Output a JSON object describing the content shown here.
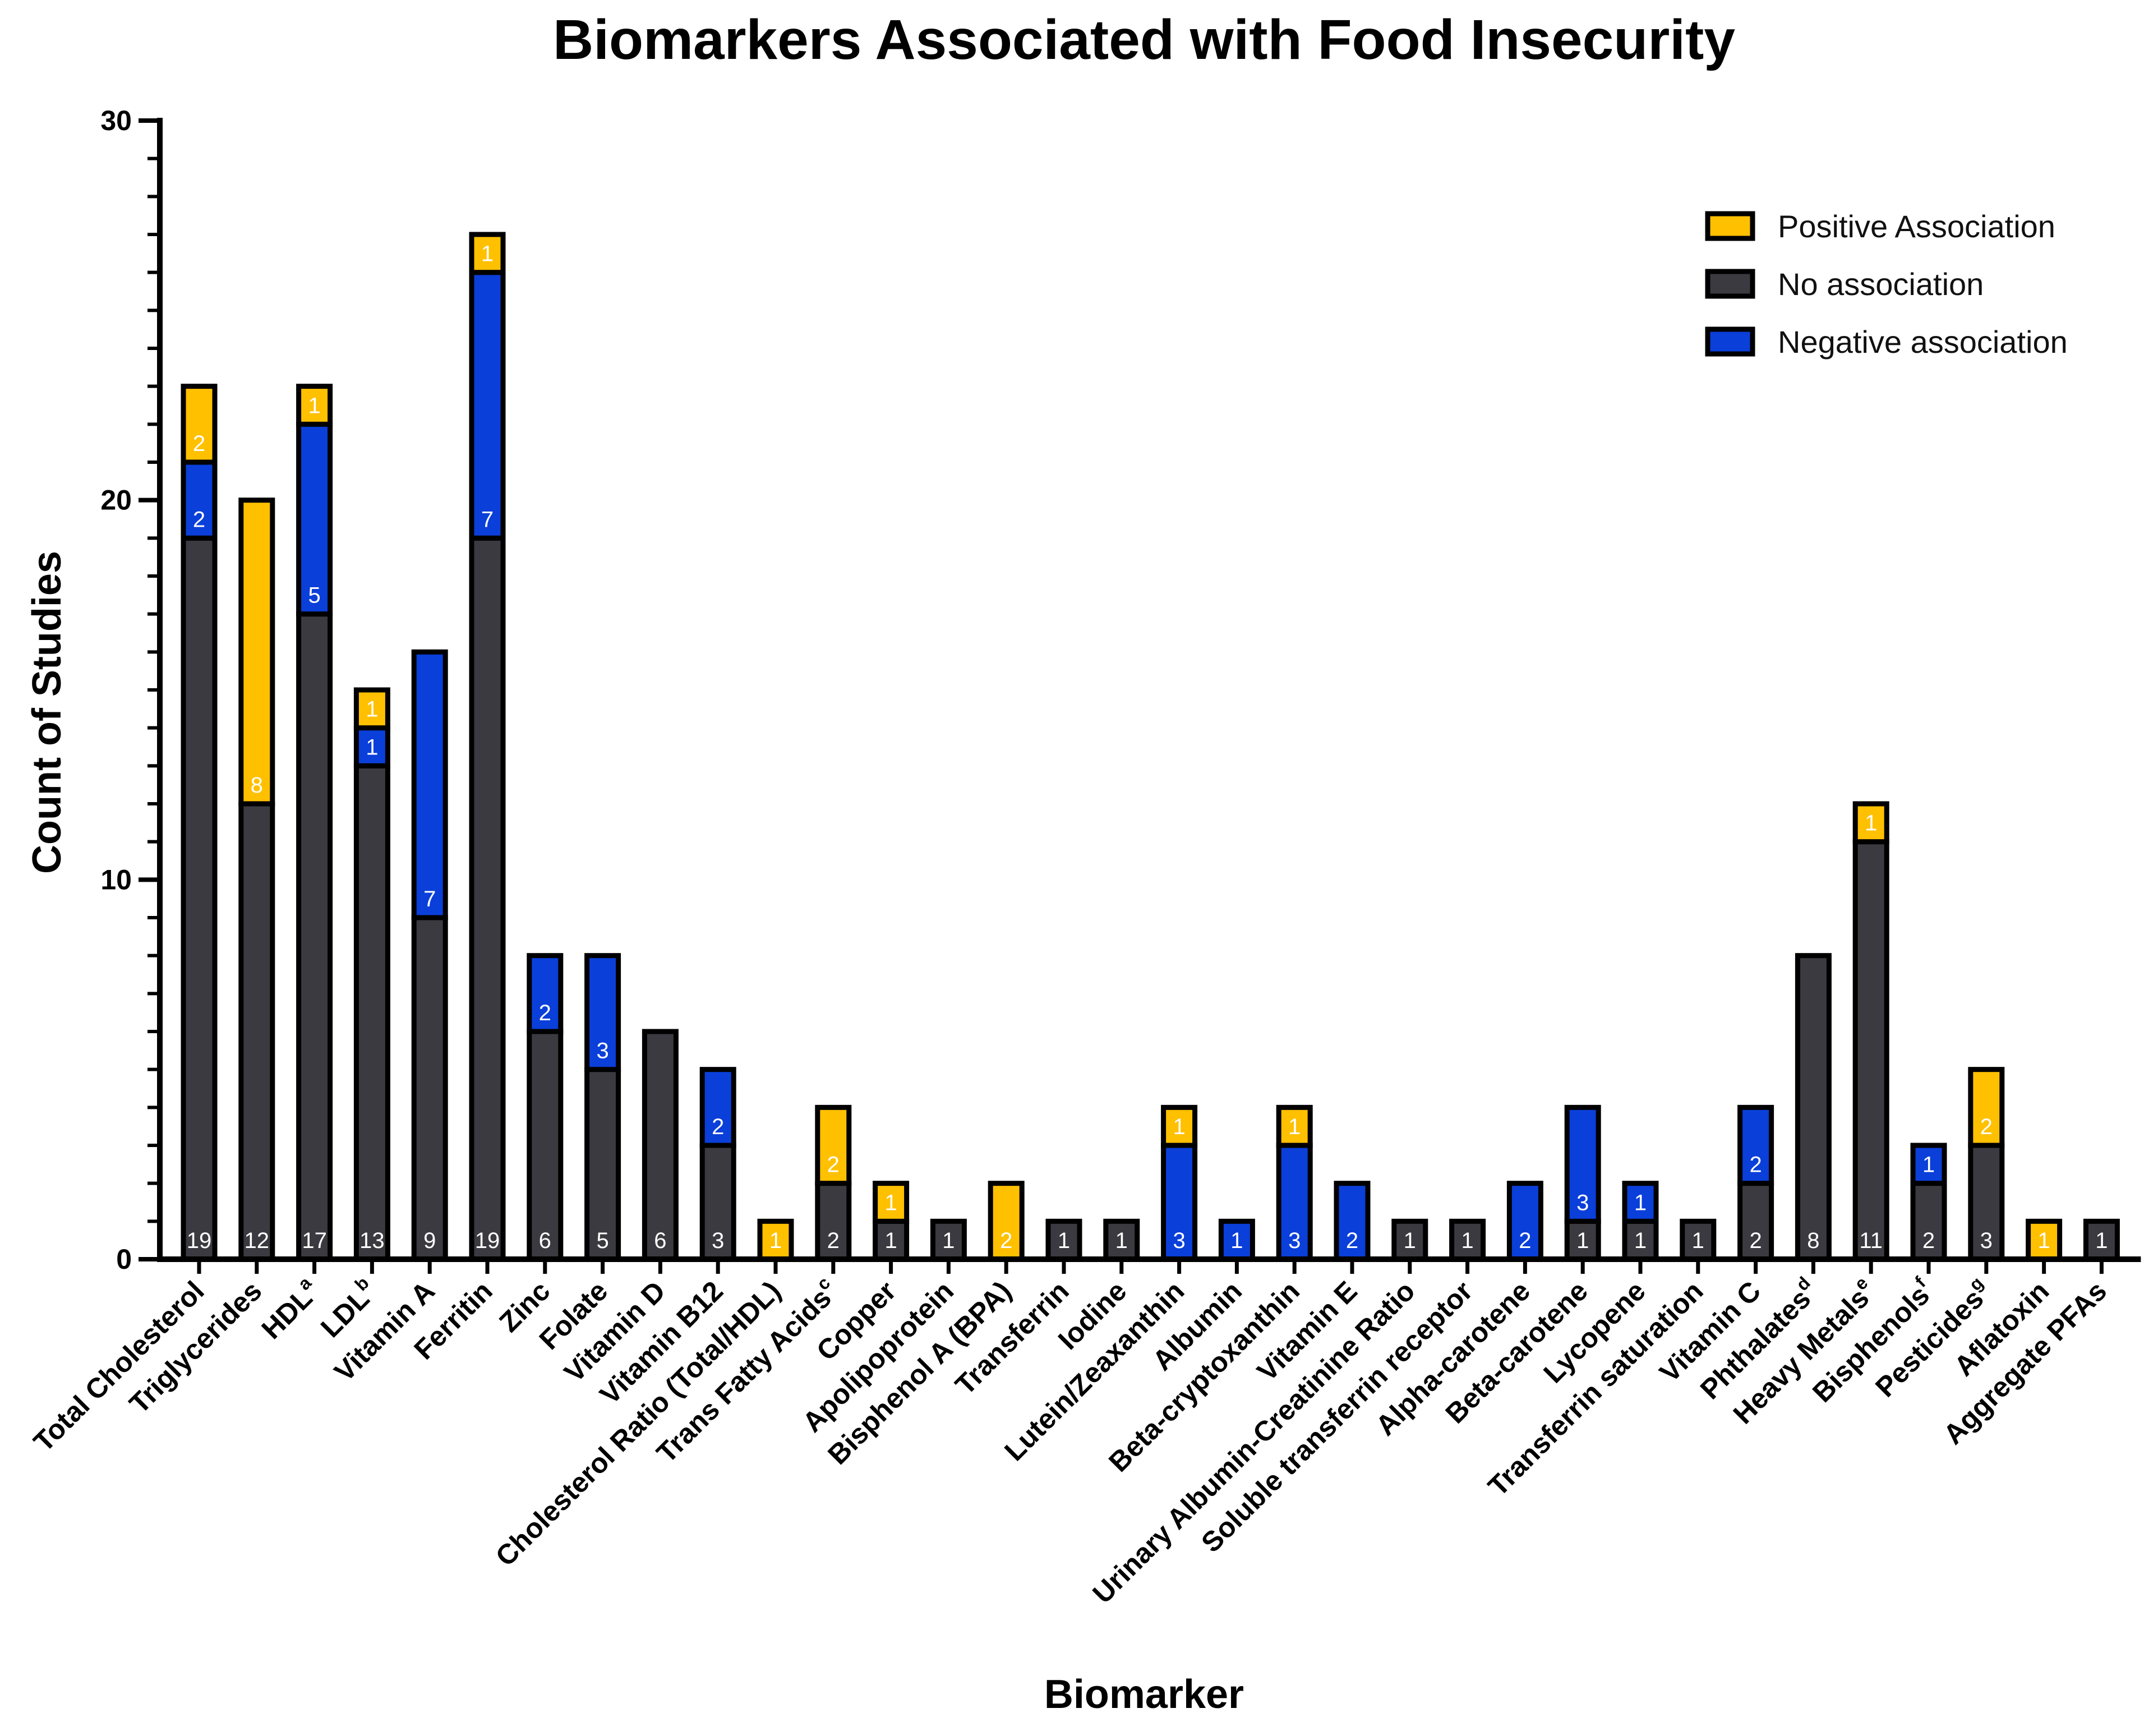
{
  "chart_data": {
    "type": "bar",
    "stacked": true,
    "title": "Biomarkers Associated with Food Insecurity",
    "xlabel": "Biomarker",
    "ylabel": "Count of Studies",
    "ylim": [
      0,
      30
    ],
    "yticks": [
      0,
      10,
      20,
      30
    ],
    "legend": {
      "placement": "top-right",
      "items": [
        "Positive Association",
        "No association",
        "Negative association"
      ]
    },
    "colors": {
      "positive": "#FFC000",
      "none": "#3A3A40",
      "negative": "#0A3FD9",
      "outline": "#000000"
    },
    "categories": [
      {
        "label": "Total Cholesterol",
        "sup": ""
      },
      {
        "label": "Triglycerides",
        "sup": ""
      },
      {
        "label": "HDL",
        "sup": "a"
      },
      {
        "label": "LDL",
        "sup": "b"
      },
      {
        "label": "Vitamin A",
        "sup": ""
      },
      {
        "label": "Ferritin",
        "sup": ""
      },
      {
        "label": "Zinc",
        "sup": ""
      },
      {
        "label": "Folate",
        "sup": ""
      },
      {
        "label": "Vitamin D",
        "sup": ""
      },
      {
        "label": "Vitamin B12",
        "sup": ""
      },
      {
        "label": "Cholesterol Ratio (Total/HDL)",
        "sup": ""
      },
      {
        "label": "Trans Fatty Acids",
        "sup": "c"
      },
      {
        "label": "Copper",
        "sup": ""
      },
      {
        "label": "Apolipoprotein",
        "sup": ""
      },
      {
        "label": "Bisphenol A (BPA)",
        "sup": ""
      },
      {
        "label": "Transferrin",
        "sup": ""
      },
      {
        "label": "Iodine",
        "sup": ""
      },
      {
        "label": "Lutein/Zeaxanthin",
        "sup": ""
      },
      {
        "label": "Albumin",
        "sup": ""
      },
      {
        "label": "Beta-cryptoxanthin",
        "sup": ""
      },
      {
        "label": "Vitamin E",
        "sup": ""
      },
      {
        "label": "Urinary Albumin-Creatinine Ratio",
        "sup": ""
      },
      {
        "label": "Soluble transferrin receptor",
        "sup": ""
      },
      {
        "label": "Alpha-carotene",
        "sup": ""
      },
      {
        "label": "Beta-carotene",
        "sup": ""
      },
      {
        "label": "Lycopene",
        "sup": ""
      },
      {
        "label": "Transferrin saturation",
        "sup": ""
      },
      {
        "label": "Vitamin C",
        "sup": ""
      },
      {
        "label": "Phthalates",
        "sup": "d"
      },
      {
        "label": "Heavy Metals",
        "sup": "e"
      },
      {
        "label": "Bisphenols",
        "sup": "f"
      },
      {
        "label": "Pesticides",
        "sup": "g"
      },
      {
        "label": "Aflatoxin",
        "sup": ""
      },
      {
        "label": "Aggregate PFAs",
        "sup": ""
      }
    ],
    "series": [
      {
        "name": "No association",
        "key": "none",
        "values": [
          19,
          12,
          17,
          13,
          9,
          19,
          6,
          5,
          6,
          3,
          0,
          2,
          1,
          1,
          0,
          1,
          1,
          0,
          0,
          0,
          0,
          1,
          1,
          0,
          1,
          1,
          1,
          2,
          8,
          11,
          2,
          3,
          0,
          1
        ]
      },
      {
        "name": "Negative association",
        "key": "negative",
        "values": [
          2,
          0,
          5,
          1,
          7,
          7,
          2,
          3,
          0,
          2,
          0,
          0,
          0,
          0,
          0,
          0,
          0,
          3,
          1,
          3,
          2,
          0,
          0,
          2,
          3,
          1,
          0,
          2,
          0,
          0,
          1,
          0,
          0,
          0
        ]
      },
      {
        "name": "Positive Association",
        "key": "positive",
        "values": [
          2,
          8,
          1,
          1,
          0,
          1,
          0,
          0,
          0,
          0,
          1,
          2,
          1,
          0,
          2,
          0,
          0,
          1,
          0,
          1,
          0,
          0,
          0,
          0,
          0,
          0,
          0,
          0,
          0,
          1,
          0,
          2,
          1,
          0
        ]
      }
    ]
  }
}
